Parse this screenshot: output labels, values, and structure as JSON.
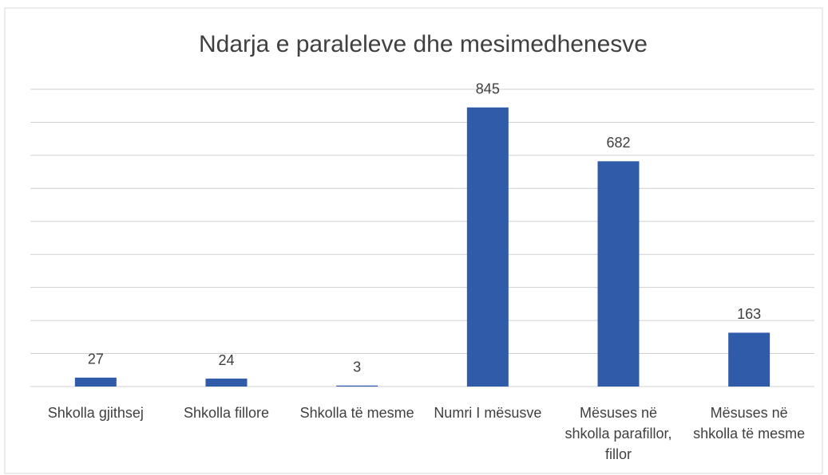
{
  "chart_data": {
    "type": "bar",
    "title": "Ndarja e paraleleve dhe mesimedhenesve",
    "categories": [
      "Shkolla gjithsej",
      "Shkolla fillore",
      "Shkolla të mesme",
      "Numri I mësusve",
      "Mësuses në shkolla parafillor, fillor",
      "Mësuses në shkolla të mesme"
    ],
    "values": [
      27,
      24,
      3,
      845,
      682,
      163
    ],
    "color": "#2f5ba9",
    "ylim": [
      0,
      900
    ],
    "yticks": [
      0,
      100,
      200,
      300,
      400,
      500,
      600,
      700,
      800,
      900
    ],
    "grid": true
  }
}
